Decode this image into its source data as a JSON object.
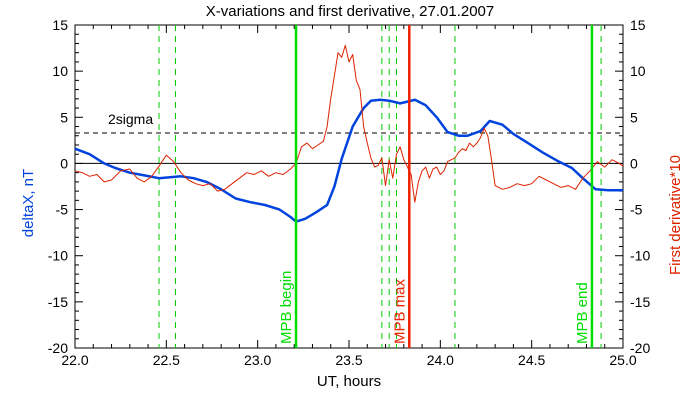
{
  "chart_data": {
    "type": "line",
    "title": "X-variations and first derivative, 27.01.2007",
    "xlabel": "UT, hours",
    "ylabel_left": "deltaX, nT",
    "ylabel_right": "First derivative*10",
    "xlim": [
      22.0,
      25.0
    ],
    "ylim": [
      -20,
      15
    ],
    "x_ticks": [
      "22.0",
      "22.5",
      "23.0",
      "23.5",
      "24.0",
      "24.5",
      "25.0"
    ],
    "y_ticks_left": [
      "-20",
      "-15",
      "-10",
      "-5",
      "0",
      "5",
      "10",
      "15"
    ],
    "y_ticks_right": [
      "-20",
      "-15",
      "-10",
      "-5",
      "0",
      "5",
      "10",
      "15"
    ],
    "grid": false,
    "threshold": {
      "label": "2sigma",
      "value": 3.3
    },
    "zero_line": 0,
    "markers": [
      {
        "label": "MPB begin",
        "x": 23.21,
        "color": "#00dd00",
        "style": "solid"
      },
      {
        "label": "MPB max",
        "x": 23.83,
        "color": "#ee2200",
        "style": "solid"
      },
      {
        "label": "MPB end",
        "x": 24.83,
        "color": "#00dd00",
        "style": "solid"
      }
    ],
    "dashed_lines_x": [
      22.46,
      22.55,
      23.68,
      23.72,
      23.76,
      24.08,
      24.88
    ],
    "dashed_color": "#00cc00",
    "series": [
      {
        "color": "#0044dd",
        "axis": "left",
        "x": [
          22.0,
          22.08,
          22.16,
          22.22,
          22.3,
          22.38,
          22.46,
          22.52,
          22.58,
          22.65,
          22.72,
          22.8,
          22.88,
          22.96,
          23.04,
          23.12,
          23.18,
          23.21,
          23.26,
          23.32,
          23.38,
          23.42,
          23.46,
          23.52,
          23.58,
          23.62,
          23.67,
          23.72,
          23.78,
          23.82,
          23.86,
          23.92,
          23.98,
          24.04,
          24.1,
          24.15,
          24.22,
          24.27,
          24.34,
          24.4,
          24.48,
          24.56,
          24.64,
          24.72,
          24.78,
          24.85,
          24.92,
          25.0
        ],
        "values": [
          1.6,
          1.0,
          0.0,
          -0.5,
          -1.0,
          -1.3,
          -1.6,
          -1.5,
          -1.4,
          -1.6,
          -2.0,
          -2.8,
          -3.8,
          -4.2,
          -4.5,
          -5.0,
          -5.8,
          -6.3,
          -6.0,
          -5.3,
          -4.5,
          -2.5,
          0.5,
          4.0,
          6.0,
          6.8,
          6.9,
          6.8,
          6.5,
          6.7,
          6.9,
          6.3,
          5.0,
          3.4,
          3.0,
          3.0,
          3.5,
          4.6,
          4.2,
          3.2,
          2.2,
          1.2,
          0.3,
          -0.5,
          -1.6,
          -2.8,
          -2.9,
          -2.9
        ]
      },
      {
        "color": "#dd2200",
        "axis": "right",
        "x": [
          22.0,
          22.04,
          22.08,
          22.12,
          22.16,
          22.2,
          22.25,
          22.3,
          22.34,
          22.38,
          22.42,
          22.46,
          22.5,
          22.54,
          22.58,
          22.62,
          22.66,
          22.7,
          22.74,
          22.78,
          22.82,
          22.86,
          22.9,
          22.94,
          22.98,
          23.02,
          23.06,
          23.1,
          23.14,
          23.18,
          23.21,
          23.24,
          23.27,
          23.3,
          23.33,
          23.36,
          23.38,
          23.4,
          23.42,
          23.44,
          23.46,
          23.48,
          23.5,
          23.52,
          23.54,
          23.56,
          23.58,
          23.6,
          23.62,
          23.64,
          23.66,
          23.68,
          23.7,
          23.72,
          23.74,
          23.76,
          23.78,
          23.8,
          23.82,
          23.84,
          23.86,
          23.88,
          23.9,
          23.92,
          23.94,
          23.96,
          23.98,
          24.0,
          24.02,
          24.04,
          24.06,
          24.08,
          24.1,
          24.12,
          24.14,
          24.16,
          24.18,
          24.2,
          24.22,
          24.24,
          24.26,
          24.28,
          24.3,
          24.34,
          24.38,
          24.42,
          24.46,
          24.5,
          24.54,
          24.58,
          24.62,
          24.66,
          24.7,
          24.74,
          24.78,
          24.82,
          24.86,
          24.9,
          24.94,
          24.98,
          25.0
        ],
        "values": [
          -0.8,
          -1.0,
          -1.4,
          -1.2,
          -2.0,
          -1.8,
          -0.8,
          -0.6,
          -1.6,
          -2.0,
          -1.4,
          -0.3,
          0.9,
          0.2,
          -1.0,
          -1.8,
          -2.2,
          -2.4,
          -2.2,
          -3.0,
          -2.8,
          -2.2,
          -1.6,
          -1.0,
          -1.2,
          -0.8,
          -1.4,
          -1.0,
          -1.2,
          -0.6,
          0.0,
          1.8,
          2.2,
          1.6,
          2.0,
          2.4,
          4.0,
          7.0,
          9.5,
          12.0,
          11.5,
          12.8,
          11.0,
          11.8,
          9.0,
          8.0,
          4.0,
          2.2,
          0.6,
          -0.4,
          -0.2,
          0.6,
          -2.4,
          0.4,
          -1.6,
          1.0,
          1.8,
          0.4,
          -0.4,
          -1.2,
          -4.2,
          -2.0,
          -0.8,
          -0.4,
          -1.6,
          -0.6,
          -0.4,
          -1.2,
          -0.8,
          0.2,
          0.4,
          0.6,
          1.2,
          1.6,
          1.4,
          2.2,
          1.8,
          2.2,
          2.8,
          3.8,
          3.0,
          0.4,
          -2.4,
          -2.8,
          -2.6,
          -2.2,
          -2.4,
          -2.2,
          -1.4,
          -1.8,
          -2.2,
          -2.6,
          -2.4,
          -2.8,
          -1.6,
          -0.8,
          0.2,
          -0.4,
          0.4,
          0.0,
          -0.3
        ]
      }
    ]
  }
}
